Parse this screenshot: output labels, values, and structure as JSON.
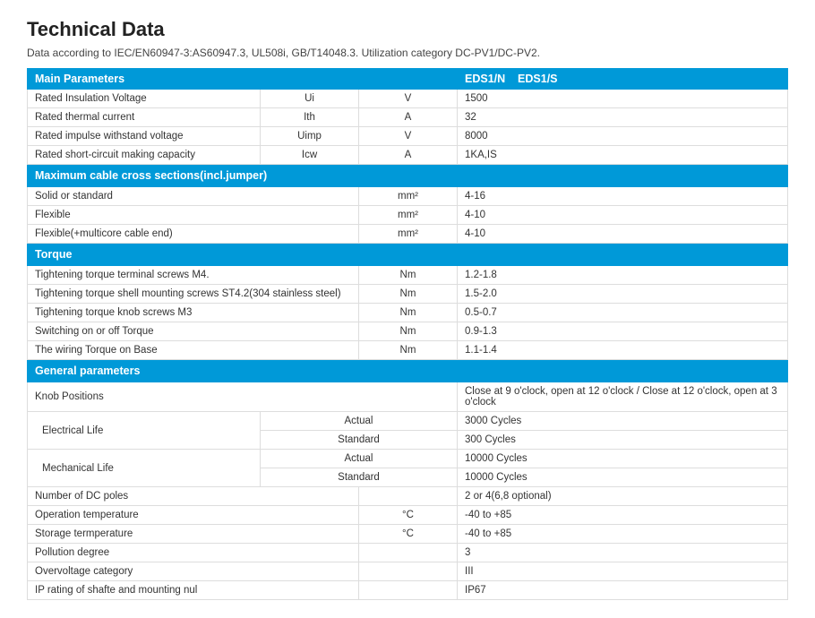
{
  "title": "Technical Data",
  "subtitle": "Data according to IEC/EN60947-3:AS60947.3, UL508i, GB/T14048.3. Utilization category DC-PV1/DC-PV2.",
  "colors": {
    "section_bg": "#0099d8",
    "section_fg": "#ffffff",
    "border": "#dddddd",
    "text": "#333333"
  },
  "sections": {
    "main": {
      "header_label": "Main Parameters",
      "models": "EDS1/N    EDS1/S"
    },
    "cable": {
      "header_label": "Maximum cable cross sections(incl.jumper)"
    },
    "torque": {
      "header_label": "Torque"
    },
    "general": {
      "header_label": "General parameters"
    }
  },
  "main_rows": [
    {
      "p": "Rated Insulation Voltage",
      "sym": "Ui",
      "unit": "V",
      "val": "1500"
    },
    {
      "p": "Rated thermal current",
      "sym": "Ith",
      "unit": "A",
      "val": "32"
    },
    {
      "p": "Rated impulse withstand voltage",
      "sym": "Uimp",
      "unit": "V",
      "val": "8000"
    },
    {
      "p": "Rated short-circuit making capacity",
      "sym": "Icw",
      "unit": "A",
      "val": "1KA,IS"
    }
  ],
  "cable_rows": [
    {
      "p": "Solid or standard",
      "unit": "mm²",
      "val": "4-16"
    },
    {
      "p": "Flexible",
      "unit": "mm²",
      "val": "4-10"
    },
    {
      "p": "Flexible(+multicore cable end)",
      "unit": "mm²",
      "val": "4-10"
    }
  ],
  "torque_rows": [
    {
      "p": "Tightening torque terminal screws M4.",
      "unit": "Nm",
      "val": "1.2-1.8"
    },
    {
      "p": "Tightening torque shell mounting screws ST4.2(304 stainless steel)",
      "unit": "Nm",
      "val": "1.5-2.0"
    },
    {
      "p": "Tightening torque knob screws M3",
      "unit": "Nm",
      "val": "0.5-0.7"
    },
    {
      "p": "Switching on or off Torque",
      "unit": "Nm",
      "val": "0.9-1.3"
    },
    {
      "p": "The wiring Torque on Base",
      "unit": "Nm",
      "val": "1.1-1.4"
    }
  ],
  "general": {
    "knob_label": "Knob Positions",
    "knob_val": "Close at 9 o'clock, open at 12 o'clock / Close at 12 o'clock, open at 3 o'clock",
    "elec_life_label": "Electrical Life",
    "mech_life_label": "Mechanical Life",
    "actual": "Actual",
    "standard": "Standard",
    "elec_actual": "3000 Cycles",
    "elec_standard": "300 Cycles",
    "mech_actual": "10000 Cycles",
    "mech_standard": "10000 Cycles",
    "rows": [
      {
        "p": "Number of DC poles",
        "unit": "",
        "val": "2 or 4(6,8 optional)"
      },
      {
        "p": "Operation temperature",
        "unit": "°C",
        "val": "-40 to +85"
      },
      {
        "p": "Storage termperature",
        "unit": "°C",
        "val": "-40 to +85"
      },
      {
        "p": "Pollution degree",
        "unit": "",
        "val": "3"
      },
      {
        "p": "Overvoltage category",
        "unit": "",
        "val": "III"
      },
      {
        "p": "IP rating of shafte and mounting nul",
        "unit": "",
        "val": "IP67"
      }
    ]
  }
}
